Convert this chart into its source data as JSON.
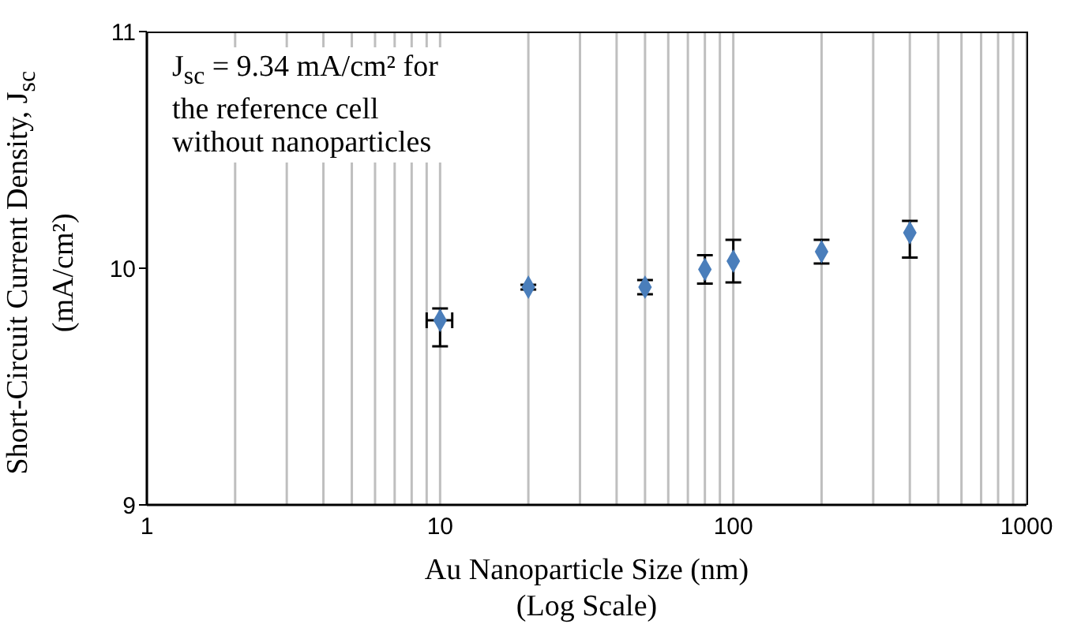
{
  "chart_data": {
    "type": "scatter",
    "xlabel": "Au Nanoparticle Size (nm)\n(Log Scale)",
    "ylabel": "Short-Circuit Current Density, J$_{sc}$\n(mA/cm²)",
    "annotations": [
      "J$_{sc}$ = 9.34 mA/cm² for\nthe reference cell\nwithout nanoparticles"
    ],
    "x": [
      10,
      20,
      50,
      80,
      100,
      200,
      400
    ],
    "values": [
      9.78,
      9.92,
      9.92,
      9.995,
      10.03,
      10.07,
      10.15
    ],
    "errors": [
      [
        9.67,
        9.83
      ],
      0.01,
      0.03,
      0.06,
      0.09,
      0.05,
      [
        10.045,
        10.2
      ]
    ],
    "xerrors": [
      [
        9,
        11
      ],
      null,
      null,
      null,
      null,
      null,
      null
    ],
    "color": "#4a7ebb",
    "marker": "diamond",
    "log": "x",
    "grid": "x",
    "xlim": [
      1,
      1000
    ],
    "xticks": [
      1,
      {
        "value": 2,
        "label": null
      },
      {
        "value": 3,
        "label": null
      },
      {
        "value": 4,
        "label": null
      },
      {
        "value": 5,
        "label": null
      },
      {
        "value": 6,
        "label": null
      },
      {
        "value": 7,
        "label": null
      },
      {
        "value": 8,
        "label": null
      },
      {
        "value": 9,
        "label": null
      },
      10,
      {
        "value": 20,
        "label": null
      },
      {
        "value": 30,
        "label": null
      },
      {
        "value": 40,
        "label": null
      },
      {
        "value": 50,
        "label": null
      },
      {
        "value": 60,
        "label": null
      },
      {
        "value": 70,
        "label": null
      },
      {
        "value": 80,
        "label": null
      },
      {
        "value": 90,
        "label": null
      },
      100,
      {
        "value": 200,
        "label": null
      },
      {
        "value": 300,
        "label": null
      },
      {
        "value": 400,
        "label": null
      },
      {
        "value": 500,
        "label": null
      },
      {
        "value": 600,
        "label": null
      },
      {
        "value": 700,
        "label": null
      },
      {
        "value": 800,
        "label": null
      },
      {
        "value": 900,
        "label": null
      },
      1000
    ],
    "ylim": [
      9,
      11
    ],
    "yticks": [
      9,
      10,
      11
    ]
  }
}
